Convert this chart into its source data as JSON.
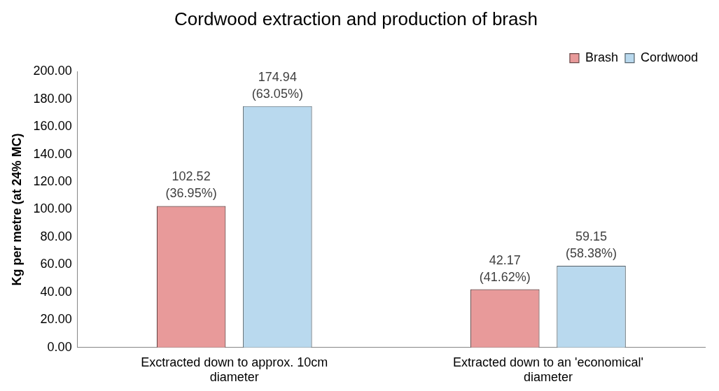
{
  "chart_data": {
    "type": "bar",
    "title": "Cordwood extraction and production of brash",
    "ylabel": "Kg per metre (at 24% MC)",
    "categories": [
      "Exctracted down to approx. 10cm diameter",
      "Extracted down to an 'economical' diameter"
    ],
    "series": [
      {
        "name": "Brash",
        "color": "#e89a9a",
        "values": [
          102.52,
          42.17
        ],
        "value_labels": [
          "102.52\n(36.95%)",
          "42.17\n(41.62%)"
        ]
      },
      {
        "name": "Cordwood",
        "color": "#b9d9ee",
        "values": [
          174.94,
          59.15
        ],
        "value_labels": [
          "174.94\n(63.05%)",
          "59.15\n(58.38%)"
        ]
      }
    ],
    "ylim": [
      0,
      200
    ],
    "yticks": [
      {
        "value": 0,
        "label": "0.00"
      },
      {
        "value": 20,
        "label": "20.00"
      },
      {
        "value": 40,
        "label": "40.00"
      },
      {
        "value": 60,
        "label": "60.00"
      },
      {
        "value": 80,
        "label": "80.00"
      },
      {
        "value": 100,
        "label": "100.00"
      },
      {
        "value": 120,
        "label": "120.00"
      },
      {
        "value": 140,
        "label": "140.00"
      },
      {
        "value": 160,
        "label": "160.00"
      },
      {
        "value": 180,
        "label": "180.00"
      },
      {
        "value": 200,
        "label": "200.00"
      }
    ],
    "grid": false,
    "legend": "top right"
  }
}
